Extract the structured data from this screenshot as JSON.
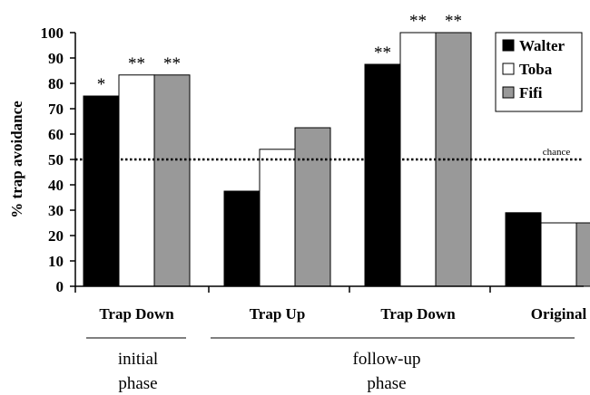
{
  "chart_data": {
    "type": "bar",
    "ylabel": "% trap avoidance",
    "ylim": [
      0,
      100
    ],
    "yticks": [
      0,
      10,
      20,
      30,
      40,
      50,
      60,
      70,
      80,
      90,
      100
    ],
    "grid": false,
    "legend_position": "top-right",
    "categories": [
      "Trap Down",
      "Trap Up",
      "Trap Down",
      "Original"
    ],
    "series": [
      {
        "name": "Walter",
        "color": "#000000",
        "values": [
          75,
          37.5,
          87.5,
          29
        ]
      },
      {
        "name": "Toba",
        "color": "#ffffff",
        "values": [
          83.3,
          54,
          100,
          25
        ]
      },
      {
        "name": "Fifi",
        "color": "#999999",
        "values": [
          83.3,
          62.5,
          100,
          25
        ]
      }
    ],
    "significance": [
      [
        "*",
        "**",
        "**"
      ],
      [
        "",
        "",
        ""
      ],
      [
        "**",
        "**",
        "**"
      ],
      [
        "",
        "",
        ""
      ]
    ],
    "reference_line": {
      "value": 50,
      "label": "chance",
      "style": "dotted"
    },
    "phases": [
      {
        "line1": "initial",
        "line2": "phase",
        "categories": [
          0
        ]
      },
      {
        "line1": "follow-up",
        "line2": "phase",
        "categories": [
          1,
          2,
          3
        ]
      }
    ]
  }
}
